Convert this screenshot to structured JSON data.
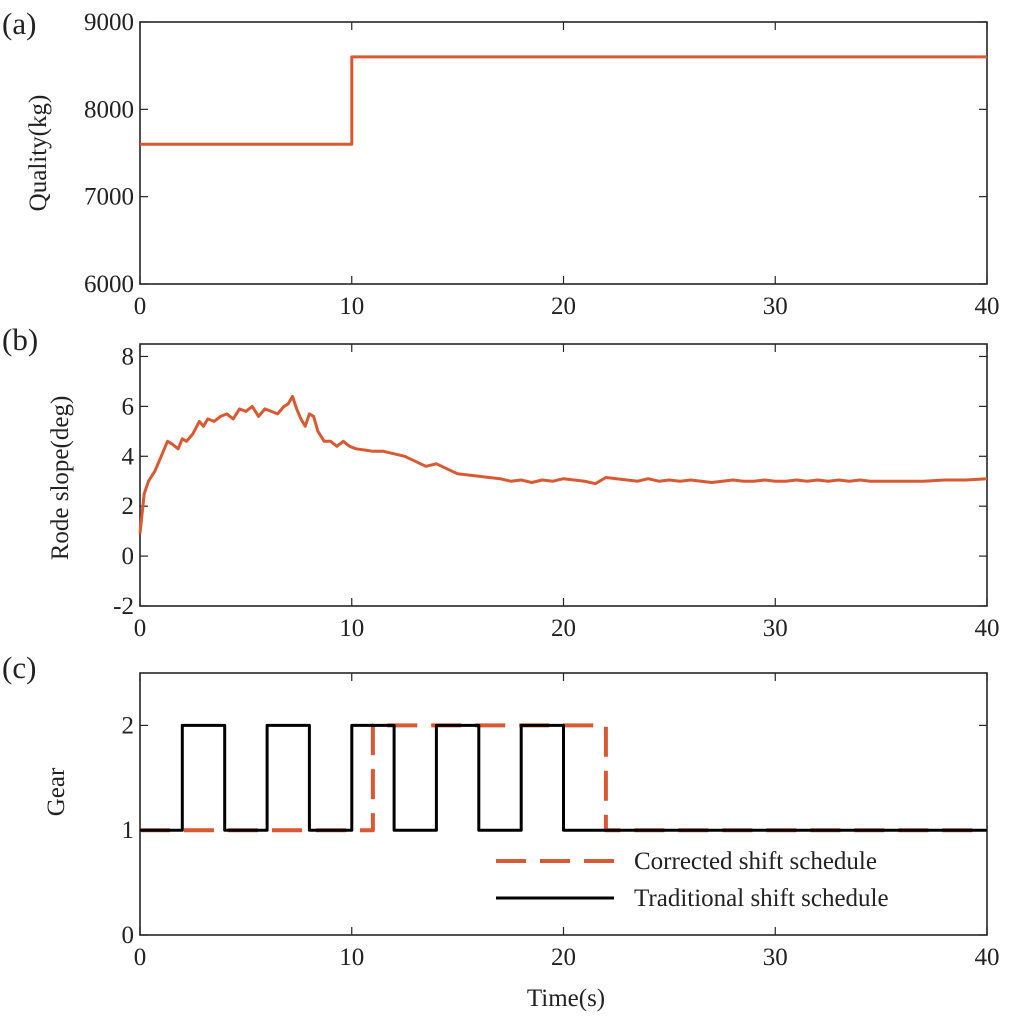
{
  "chart_data": [
    {
      "id": "a",
      "panel_label": "(a)",
      "type": "line",
      "ylabel": "Quality(kg)",
      "xlabel": "",
      "xlim": [
        0,
        40
      ],
      "ylim": [
        6000,
        9000
      ],
      "xticks": [
        0,
        10,
        20,
        30,
        40
      ],
      "yticks": [
        6000,
        7000,
        8000,
        9000
      ],
      "xtick_labels": [
        "0",
        "10",
        "20",
        "30",
        "40"
      ],
      "ytick_labels": [
        "6000",
        "7000",
        "8000",
        "9000"
      ],
      "series": [
        {
          "name": "Quality",
          "color": "#d95a32",
          "style": "solid",
          "x": [
            0,
            10,
            10,
            40
          ],
          "y": [
            7600,
            7600,
            8600,
            8600
          ]
        }
      ]
    },
    {
      "id": "b",
      "panel_label": "(b)",
      "type": "line",
      "ylabel": "Rode slope(deg)",
      "xlabel": "",
      "xlim": [
        0,
        40
      ],
      "ylim": [
        -2,
        8.5
      ],
      "xticks": [
        0,
        10,
        20,
        30,
        40
      ],
      "yticks": [
        -2,
        0,
        2,
        4,
        6,
        8
      ],
      "xtick_labels": [
        "0",
        "10",
        "20",
        "30",
        "40"
      ],
      "ytick_labels": [
        "-2",
        "0",
        "2",
        "4",
        "6",
        "8"
      ],
      "series": [
        {
          "name": "Rode slope",
          "color": "#d95a32",
          "style": "solid",
          "x": [
            0,
            0.2,
            0.4,
            0.7,
            1.0,
            1.3,
            1.5,
            1.8,
            2.0,
            2.2,
            2.5,
            2.8,
            3.0,
            3.2,
            3.5,
            3.8,
            4.1,
            4.4,
            4.7,
            5.0,
            5.3,
            5.6,
            5.9,
            6.2,
            6.5,
            6.8,
            7.0,
            7.2,
            7.4,
            7.6,
            7.8,
            8.0,
            8.2,
            8.4,
            8.7,
            9.0,
            9.3,
            9.6,
            9.9,
            10.2,
            10.6,
            11.0,
            11.5,
            12.0,
            12.5,
            13.0,
            13.5,
            14.0,
            14.5,
            15.0,
            15.5,
            16.0,
            16.5,
            17.0,
            17.5,
            18.0,
            18.5,
            19.0,
            19.5,
            20.0,
            20.5,
            21.0,
            21.5,
            22.0,
            22.5,
            23.0,
            23.5,
            24.0,
            24.5,
            25.0,
            25.5,
            26.0,
            26.5,
            27.0,
            27.5,
            28.0,
            28.5,
            29.0,
            29.5,
            30.0,
            30.5,
            31.0,
            31.5,
            32.0,
            32.5,
            33.0,
            33.5,
            34.0,
            34.5,
            35.0,
            35.5,
            36.0,
            37.0,
            38.0,
            39.0,
            40.0
          ],
          "y": [
            0.9,
            2.5,
            3.0,
            3.4,
            4.0,
            4.6,
            4.5,
            4.3,
            4.7,
            4.6,
            4.9,
            5.4,
            5.2,
            5.5,
            5.4,
            5.6,
            5.7,
            5.5,
            5.9,
            5.8,
            6.0,
            5.6,
            5.9,
            5.8,
            5.7,
            6.0,
            6.1,
            6.4,
            5.9,
            5.5,
            5.2,
            5.7,
            5.6,
            5.0,
            4.6,
            4.6,
            4.4,
            4.6,
            4.4,
            4.3,
            4.25,
            4.2,
            4.2,
            4.1,
            4.0,
            3.8,
            3.6,
            3.7,
            3.5,
            3.3,
            3.25,
            3.2,
            3.15,
            3.1,
            3.0,
            3.05,
            2.95,
            3.05,
            3.0,
            3.1,
            3.05,
            3.0,
            2.9,
            3.15,
            3.1,
            3.05,
            3.0,
            3.1,
            3.0,
            3.05,
            3.0,
            3.05,
            3.0,
            2.95,
            3.0,
            3.05,
            3.0,
            3.0,
            3.05,
            3.0,
            3.0,
            3.05,
            3.0,
            3.05,
            3.0,
            3.05,
            3.0,
            3.05,
            3.0,
            3.0,
            3.0,
            3.0,
            3.0,
            3.05,
            3.05,
            3.1
          ]
        }
      ]
    },
    {
      "id": "c",
      "panel_label": "(c)",
      "type": "line",
      "ylabel": "Gear",
      "xlabel": "Time(s)",
      "xlim": [
        0,
        40
      ],
      "ylim": [
        0,
        2.5
      ],
      "xticks": [
        0,
        10,
        20,
        30,
        40
      ],
      "yticks": [
        0,
        1,
        2
      ],
      "xtick_labels": [
        "0",
        "10",
        "20",
        "30",
        "40"
      ],
      "ytick_labels": [
        "0",
        "1",
        "2"
      ],
      "legend_position": "bottom-right",
      "series": [
        {
          "name": "Corrected shift schedule",
          "color": "#d95a32",
          "style": "dashed",
          "x": [
            0,
            11,
            11,
            22,
            22,
            40
          ],
          "y": [
            1,
            1,
            2,
            2,
            1,
            1
          ]
        },
        {
          "name": "Traditional shift schedule",
          "color": "#000000",
          "style": "solid",
          "x": [
            0,
            2,
            2,
            4,
            4,
            6,
            6,
            8,
            8,
            10,
            10,
            12,
            12,
            14,
            14,
            16,
            16,
            18,
            18,
            20,
            20,
            40
          ],
          "y": [
            1,
            1,
            2,
            2,
            1,
            1,
            2,
            2,
            1,
            1,
            2,
            2,
            1,
            1,
            2,
            2,
            1,
            1,
            2,
            2,
            1,
            1
          ]
        }
      ]
    }
  ]
}
